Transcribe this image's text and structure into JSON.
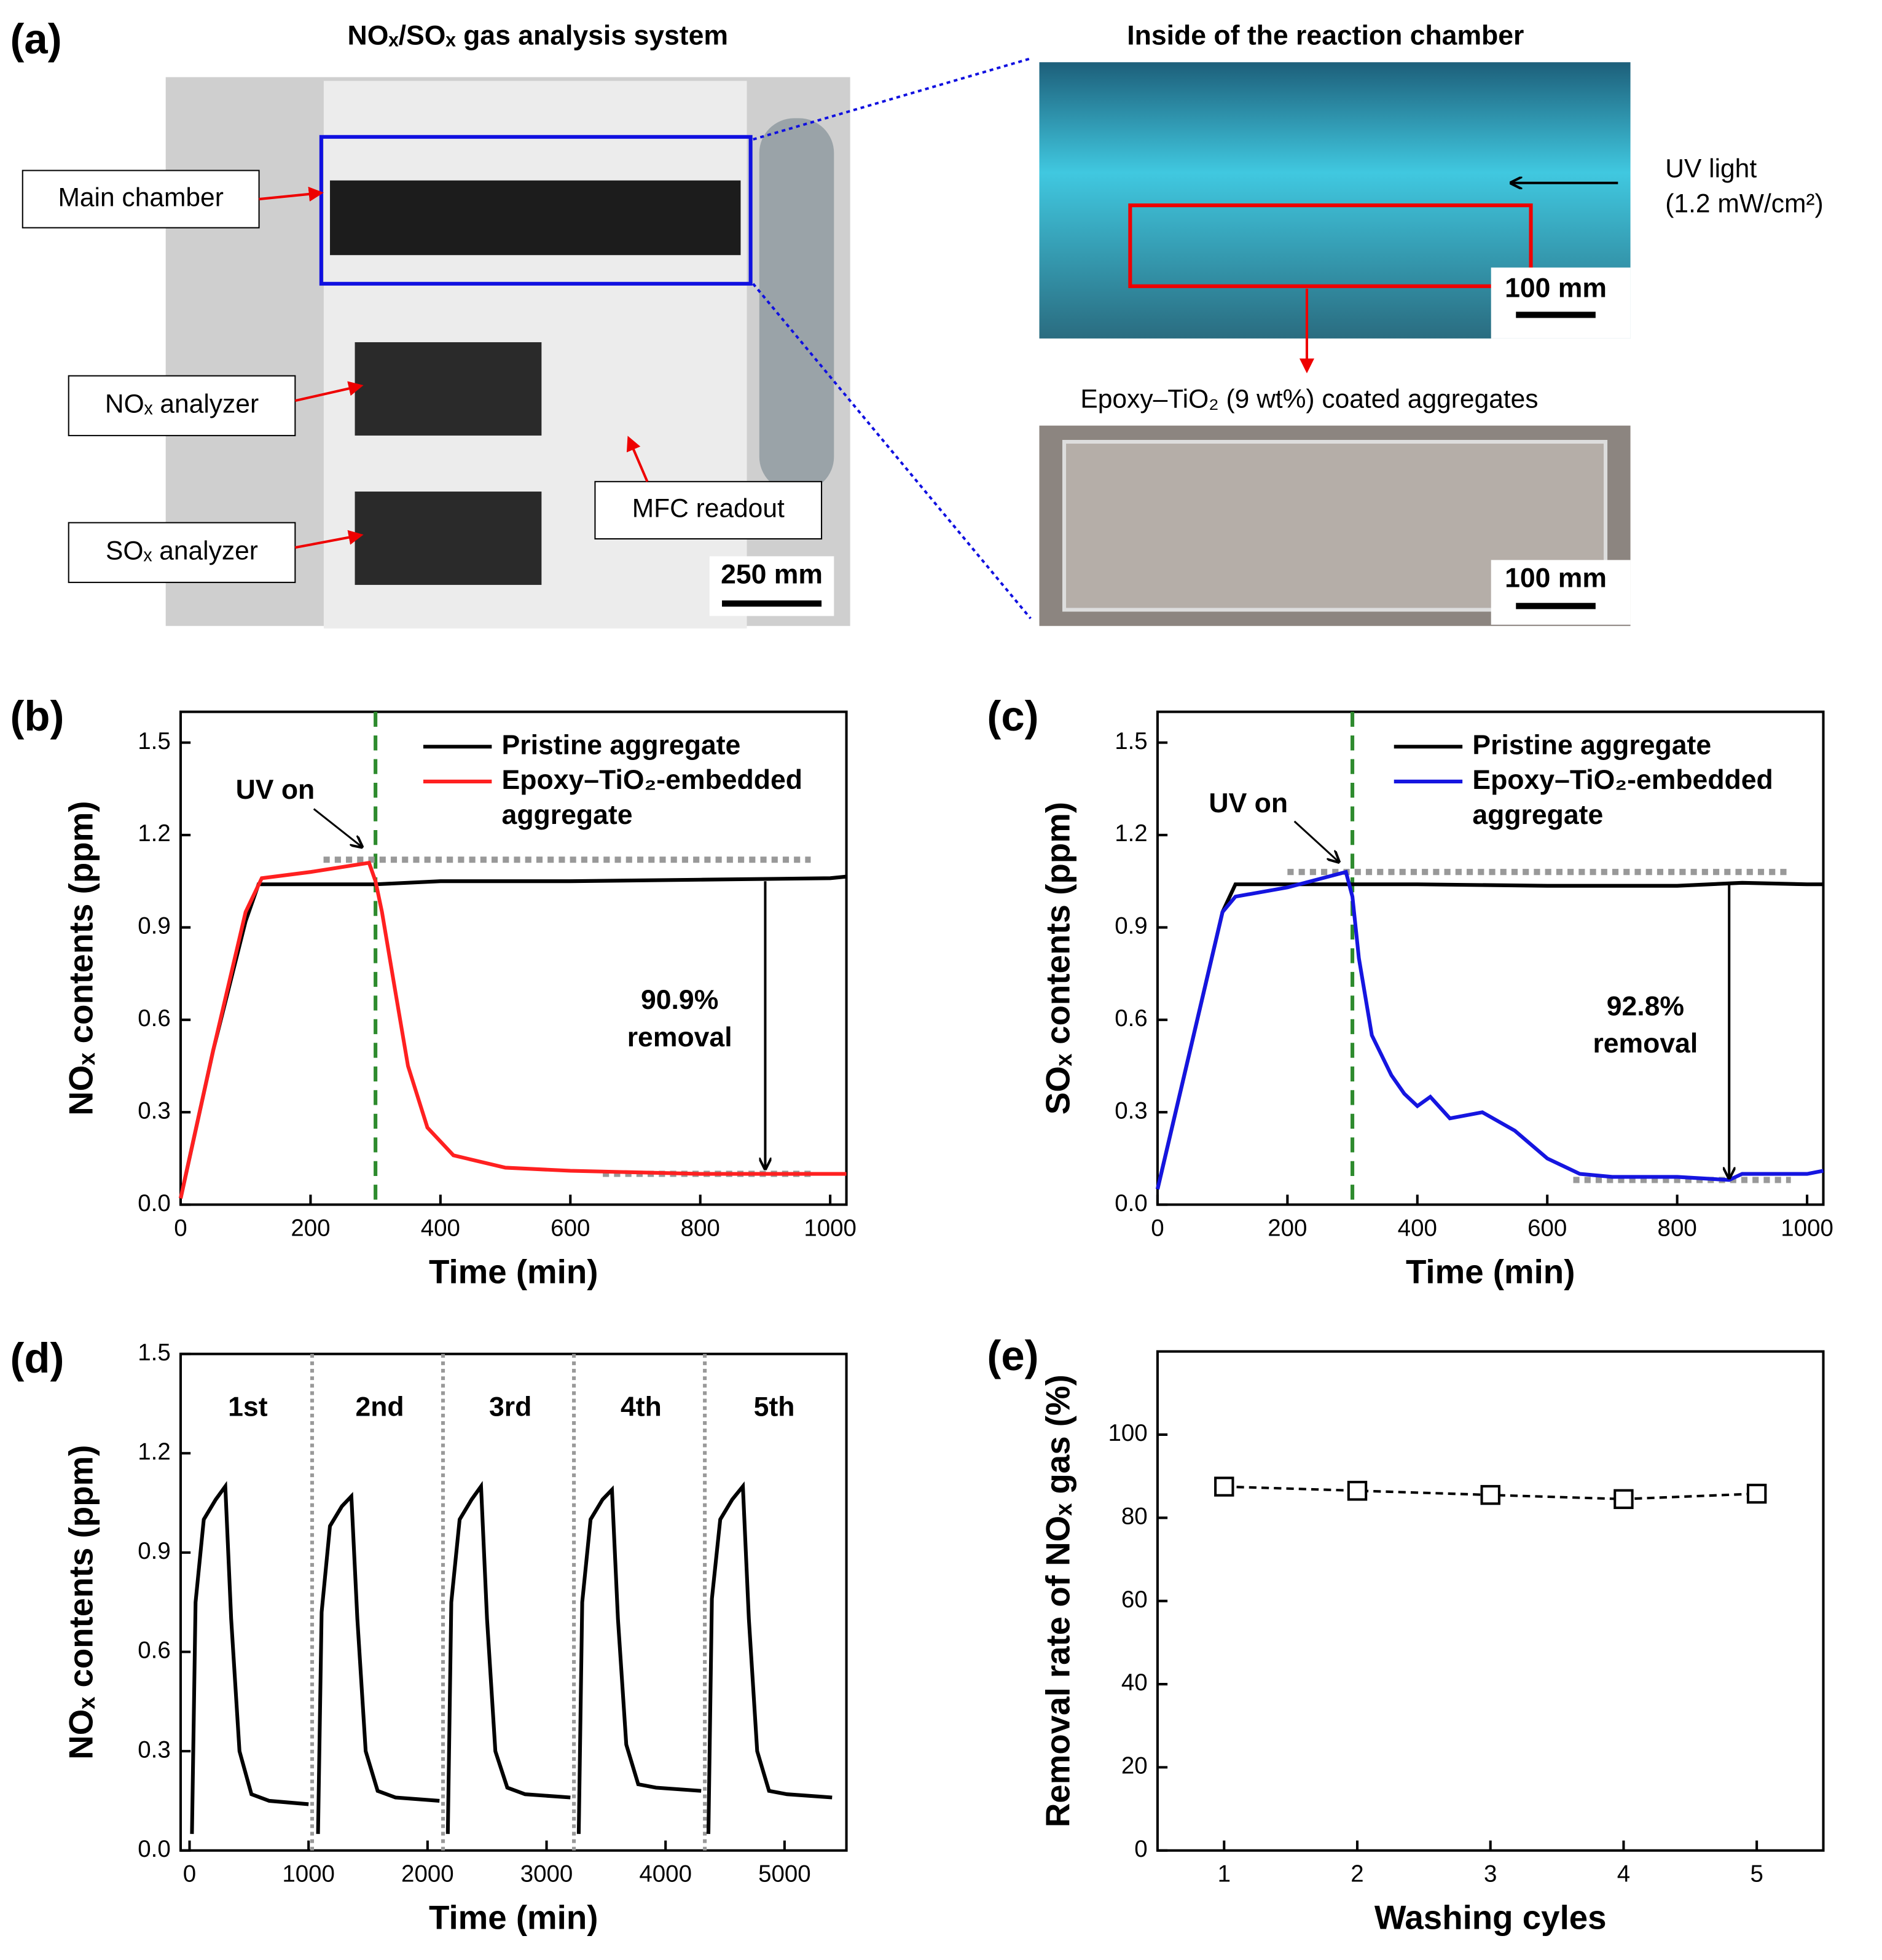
{
  "figure_a": {
    "panel": "(a)",
    "left_title": "NOₓ/SOₓ gas analysis system",
    "right_title": "Inside of the reaction chamber",
    "main_chamber": "Main chamber",
    "nox_analyzer": "NOₓ analyzer",
    "sox_analyzer": "SOₓ analyzer",
    "mfc_readout": "MFC readout",
    "scale_left": "250 mm",
    "uv_light": "UV light",
    "uv_intensity": "(1.2 mW/cm²)",
    "scale_top": "100 mm",
    "sample_caption": "Epoxy–TiO₂ (9 wt%) coated aggregates",
    "scale_bottom": "100 mm"
  },
  "chart_data": [
    {
      "type": "line",
      "panel": "(b)",
      "xlabel": "Time (min)",
      "ylabel": "NOₓ contents (ppm)",
      "xlim": [
        0,
        1025
      ],
      "xticks": [
        0,
        200,
        400,
        600,
        800,
        1000
      ],
      "ylim": [
        0,
        1.6
      ],
      "yticks": [
        {
          "value": 0,
          "label": "0.0"
        },
        0.3,
        0.6,
        0.9,
        1.2,
        1.5
      ],
      "legend": true,
      "series": [
        {
          "name": "Pristine aggregate",
          "color": "#000000",
          "x": [
            0,
            50,
            100,
            120,
            200,
            300,
            400,
            600,
            800,
            1000,
            1025
          ],
          "values": [
            0.02,
            0.5,
            0.92,
            1.04,
            1.04,
            1.04,
            1.05,
            1.05,
            1.055,
            1.06,
            1.065
          ]
        },
        {
          "name": "Epoxy–TiO₂-embedded aggregate",
          "color": "#ff2020",
          "x": [
            0,
            50,
            100,
            125,
            200,
            290,
            300,
            310,
            330,
            350,
            380,
            420,
            500,
            600,
            800,
            1000,
            1025
          ],
          "values": [
            0.02,
            0.5,
            0.95,
            1.06,
            1.08,
            1.11,
            1.05,
            0.95,
            0.7,
            0.45,
            0.25,
            0.16,
            0.12,
            0.11,
            0.1,
            0.1,
            0.1
          ]
        }
      ],
      "vlines": [
        300
      ],
      "vline_color": "#2e8b2e",
      "hlines": [
        {
          "y": 1.12,
          "x": [
            220,
            970
          ]
        },
        {
          "y": 0.1,
          "x": [
            650,
            970
          ]
        }
      ],
      "arrows": [
        {
          "x": 900,
          "y": [
            1.05,
            0.12
          ]
        }
      ],
      "annotations": [
        "UV on",
        "90.9%",
        "removal"
      ]
    },
    {
      "type": "line",
      "panel": "(c)",
      "xlabel": "Time (min)",
      "ylabel": "SOₓ contents (ppm)",
      "xlim": [
        0,
        1025
      ],
      "xticks": [
        0,
        200,
        400,
        600,
        800,
        1000
      ],
      "ylim": [
        0,
        1.6
      ],
      "yticks": [
        {
          "value": 0,
          "label": "0.0"
        },
        0.3,
        0.6,
        0.9,
        1.2,
        1.5
      ],
      "legend": true,
      "series": [
        {
          "name": "Pristine aggregate",
          "color": "#000000",
          "x": [
            0,
            50,
            100,
            120,
            200,
            300,
            400,
            600,
            800,
            900,
            1000,
            1025
          ],
          "values": [
            0.05,
            0.5,
            0.95,
            1.04,
            1.04,
            1.04,
            1.04,
            1.035,
            1.035,
            1.045,
            1.04,
            1.04
          ]
        },
        {
          "name": "Epoxy–TiO₂-embedded aggregate",
          "color": "#1515e0",
          "x": [
            0,
            50,
            100,
            120,
            200,
            290,
            300,
            310,
            330,
            360,
            380,
            400,
            420,
            450,
            500,
            550,
            600,
            650,
            700,
            800,
            880,
            900,
            1000,
            1025
          ],
          "values": [
            0.05,
            0.5,
            0.95,
            1.0,
            1.03,
            1.08,
            1.0,
            0.8,
            0.55,
            0.42,
            0.36,
            0.32,
            0.35,
            0.28,
            0.3,
            0.24,
            0.15,
            0.1,
            0.09,
            0.09,
            0.08,
            0.1,
            0.1,
            0.11
          ]
        }
      ],
      "vlines": [
        300
      ],
      "vline_color": "#2e8b2e",
      "hlines": [
        {
          "y": 1.08,
          "x": [
            200,
            975
          ]
        },
        {
          "y": 0.08,
          "x": [
            640,
            975
          ]
        }
      ],
      "arrows": [
        {
          "x": 880,
          "y": [
            1.04,
            0.09
          ]
        }
      ],
      "annotations": [
        "UV on",
        "92.8%",
        "removal"
      ]
    },
    {
      "type": "line",
      "panel": "(d)",
      "xlabel": "Time (min)",
      "ylabel": "NOₓ contents (ppm)",
      "xlim": [
        -75,
        5520
      ],
      "xticks": [
        0,
        1000,
        2000,
        3000,
        4000,
        5000
      ],
      "ylim": [
        0,
        1.5
      ],
      "yticks": [
        {
          "value": 0,
          "label": "0.0"
        },
        0.3,
        0.6,
        0.9,
        1.2,
        1.5
      ],
      "legend": false,
      "series": [
        {
          "name": "NOₓ",
          "color": "#000000",
          "x": [
            20,
            50,
            120,
            220,
            300,
            350,
            420,
            520,
            670,
            1000,
            1040,
            1080,
            1110,
            1180,
            1280,
            1360,
            1410,
            1480,
            1580,
            1730,
            2100,
            2140,
            2170,
            2200,
            2270,
            2370,
            2450,
            2500,
            2570,
            2670,
            2820,
            3200,
            3240,
            3270,
            3300,
            3370,
            3470,
            3550,
            3600,
            3670,
            3770,
            3920,
            4300,
            4330,
            4360,
            4390,
            4460,
            4560,
            4650,
            4700,
            4770,
            4870,
            5020,
            5400
          ],
          "values": [
            0.05,
            0.75,
            1.0,
            1.06,
            1.1,
            0.7,
            0.3,
            0.17,
            0.15,
            0.14,
            null,
            0.05,
            0.72,
            0.98,
            1.04,
            1.07,
            0.7,
            0.3,
            0.18,
            0.16,
            0.15,
            null,
            0.05,
            0.75,
            1.0,
            1.06,
            1.1,
            0.7,
            0.3,
            0.19,
            0.17,
            0.16,
            null,
            0.05,
            0.75,
            1.0,
            1.06,
            1.09,
            0.7,
            0.32,
            0.2,
            0.19,
            0.18,
            null,
            0.05,
            0.76,
            1.0,
            1.06,
            1.1,
            0.7,
            0.3,
            0.18,
            0.17,
            0.16
          ]
        }
      ],
      "vlines": [
        1030,
        2130,
        3230,
        4330
      ],
      "vline_color": "#999999",
      "hlines": [],
      "arrows": [],
      "annotations": [
        "1st",
        "2nd",
        "3rd",
        "4th",
        "5th"
      ]
    },
    {
      "type": "line",
      "panel": "(e)",
      "xlabel": "Washing cyles",
      "ylabel": "Removal rate of NOₓ gas (%)",
      "xlim": [
        0.5,
        5.5
      ],
      "xticks": [
        1,
        2,
        3,
        4,
        5
      ],
      "ylim": [
        0,
        120
      ],
      "yticks": [
        0,
        20,
        40,
        60,
        80,
        100
      ],
      "legend": false,
      "marker": "square",
      "linestyle": "dashed",
      "series": [
        {
          "name": "NOₓ removal",
          "color": "#000000",
          "x": [
            1,
            2,
            3,
            4,
            5
          ],
          "values": [
            87.5,
            86.5,
            85.5,
            84.5,
            85.8
          ]
        }
      ],
      "vlines": [],
      "hlines": [],
      "arrows": [],
      "annotations": []
    }
  ]
}
